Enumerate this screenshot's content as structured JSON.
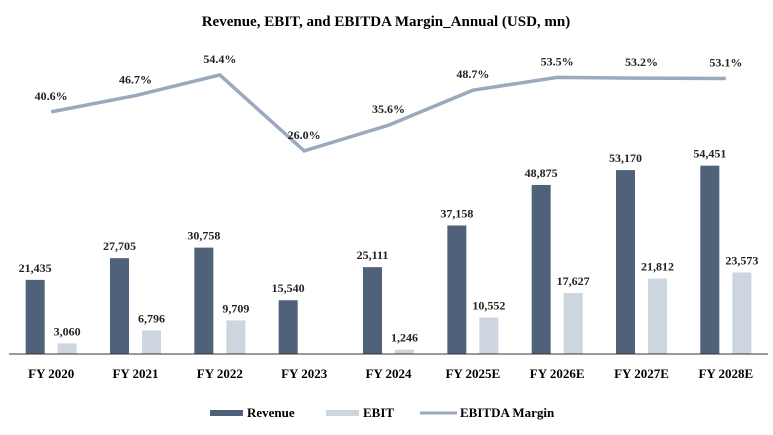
{
  "chart_data": {
    "type": "bar+line",
    "title": "Revenue, EBIT, and EBITDA Margin_Annual (USD, mn)",
    "categories": [
      "FY 2020",
      "FY 2021",
      "FY 2022",
      "FY 2023",
      "FY 2024",
      "FY 2025E",
      "FY 2026E",
      "FY 2027E",
      "FY 2028E"
    ],
    "series": [
      {
        "name": "Revenue",
        "type": "bar",
        "color": "#50627a",
        "values": [
          21435,
          27705,
          30758,
          15540,
          25111,
          37158,
          48875,
          53170,
          54451
        ],
        "labels": [
          "21,435",
          "27,705",
          "30,758",
          "15,540",
          "25,111",
          "37,158",
          "48,875",
          "53,170",
          "54,451"
        ]
      },
      {
        "name": "EBIT",
        "type": "bar",
        "color": "#cdd5df",
        "values": [
          3060,
          6796,
          9709,
          null,
          1246,
          10552,
          17627,
          21812,
          23573
        ],
        "labels": [
          "3,060",
          "6,796",
          "9,709",
          "",
          "1,246",
          "10,552",
          "17,627",
          "21,812",
          "23,573"
        ]
      },
      {
        "name": "EBITDA Margin",
        "type": "line",
        "color": "#9aa9bd",
        "values": [
          40.6,
          46.7,
          54.4,
          26.0,
          35.6,
          48.7,
          53.5,
          53.2,
          53.1
        ],
        "labels": [
          "40.6%",
          "46.7%",
          "54.4%",
          "26.0%",
          "35.6%",
          "48.7%",
          "53.5%",
          "53.2%",
          "53.1%"
        ]
      }
    ],
    "xlabel": "",
    "ylabel": "",
    "ylim": [
      0,
      85000
    ],
    "y2lim": [
      -50,
      60
    ],
    "grid": false,
    "legend": "bottom-center",
    "axes_visible": false
  }
}
